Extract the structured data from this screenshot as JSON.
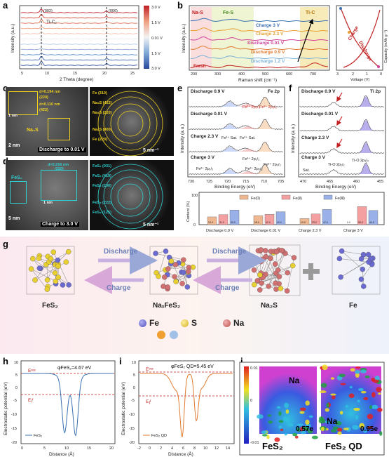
{
  "panels": {
    "a": {
      "letter": "a",
      "phase": "Ti₃C₂",
      "peak1": "(002)",
      "peak2": "(006)",
      "xlabel": "2 Theta (degree)",
      "ylabel": "Intensity (a.u.)",
      "xticks": [
        "5",
        "10",
        "15",
        "20",
        "25"
      ],
      "colorbar_ticks": [
        "3.0 V",
        "1.5 V",
        "0.01 V",
        "1.5 V",
        "3.0 V"
      ]
    },
    "b": {
      "letter": "b",
      "regions": [
        "Na-S",
        "Fe-S",
        "Ti-C"
      ],
      "curves": [
        "Charge 3 V",
        "Charge 2.3 V",
        "Discharge 0.01 V",
        "Discharge 0.9 V",
        "Discharge 1.2 V",
        "Fresh"
      ],
      "curve_colors": [
        "#3a6fb0",
        "#e6a030",
        "#d0409a",
        "#e07a30",
        "#7ab0d8",
        "#c02020"
      ],
      "xlabel": "Raman shift (cm⁻¹)",
      "ylabel": "Intensity (a.u.)",
      "xticks": [
        "200",
        "300",
        "400",
        "500",
        "600",
        "700"
      ],
      "side_xlabel": "Voltage (V)",
      "side_ylabel": "Capacity (mAh g⁻¹)",
      "side_charge": "Charge",
      "side_discharge": "Discharge",
      "side_xticks": [
        "3",
        "2",
        "1",
        "0"
      ]
    },
    "c": {
      "letter": "c",
      "caption": "Discharge to 0.01 V",
      "phase": "Na₂S",
      "scale": "2 nm",
      "inset_scale": "1 nm",
      "lattice1": "d=0.194 nm",
      "lattice2": "(220)",
      "lattice3": "d=0.110 nm",
      "lattice4": "(422)",
      "saed_scale": "5 nm⁻¹",
      "rings": [
        "Fe (310)",
        "Na₂S (422)",
        "Na₂S (220)",
        "Na₂S (400)",
        "Fe (220)"
      ]
    },
    "d": {
      "letter": "d",
      "caption": "Charge to 3.0 V",
      "phase": "FeS₂",
      "scale": "5 nm",
      "inset_scale": "1 nm",
      "lattice1": "d=0.216 nm",
      "lattice2": "(220)",
      "saed_scale": "5 nm⁻¹",
      "rings": [
        "FeS₂ (031)",
        "FeS₂ (419)",
        "FeS₂ (200)",
        "FeS₂ (222)",
        "FeS₂ (125)"
      ]
    },
    "e": {
      "letter": "e",
      "title": "Fe 2p",
      "states": [
        "Discharge 0.9 V",
        "Discharge 0.01 V",
        "Charge 2.3 V",
        "Charge 3 V"
      ],
      "xlabel": "Binding Energy (eV)",
      "ylabel": "Intensity (a.u.)",
      "xticks": [
        "730",
        "725",
        "720",
        "715",
        "710",
        "705"
      ],
      "peaks": [
        "Fe²⁺ 2p₃/₂",
        "Fe³⁺ 2p₃/₂",
        "Fe²⁺ Sat.",
        "Fe³⁺ Sat.",
        "Fe³⁺ 2p₁/₂",
        "Fe²⁺ 2p₁/₂",
        "Fe²⁺ 2p₃/₂",
        "Fe³⁺ 2p₃/₂"
      ]
    },
    "f": {
      "letter": "f",
      "title": "Ti 2p",
      "states": [
        "Discharge 0.9 V",
        "Discharge 0.01 V",
        "Charge 2.3 V",
        "Charge 3 V"
      ],
      "xlabel": "Binding Energy (eV)",
      "ylabel": "Intensity (a.u.)",
      "xticks": [
        "470",
        "465",
        "460",
        "455"
      ],
      "peaks": [
        "Ti-O 2p₁/₂",
        "Ti-O 2p₃/₂",
        "Sat."
      ]
    },
    "g": {
      "letter": "g",
      "discharge1": "Discharge",
      "charge1": "Charge",
      "discharge2": "Discharge",
      "charge2": "Charge",
      "species": [
        "FeS₂",
        "NaₓFeS₂",
        "Na₂S",
        "Fe"
      ],
      "legend": [
        {
          "name": "Fe",
          "color": "#6a6ad0"
        },
        {
          "name": "S",
          "color": "#e8d030"
        },
        {
          "name": "Na",
          "color": "#d07070"
        }
      ]
    },
    "h": {
      "letter": "h",
      "phi": "φFeS₂=4.67 eV",
      "evac": "Eᵛᵃᶜ",
      "ef": "Eƒ",
      "xlabel": "Distance (Å)",
      "ylabel": "Electrostatic potential (eV)",
      "legend": "FeS₂",
      "xticks": [
        "0",
        "5",
        "10",
        "15",
        "20"
      ],
      "yticks": [
        "10",
        "5",
        "0",
        "-5",
        "-10",
        "-15",
        "-20"
      ]
    },
    "i": {
      "letter": "i",
      "phi": "φFeS₂ QD=5.45 eV",
      "evac": "Eᵛᵃᶜ",
      "ef": "Eƒ",
      "xlabel": "Distance (Å)",
      "ylabel": "Electrostatic potential (eV)",
      "legend": "FeS₂ QD",
      "xticks": [
        "-2",
        "0",
        "2",
        "4",
        "6",
        "8",
        "10",
        "12",
        "14"
      ],
      "yticks": [
        "10",
        "5",
        "0",
        "-5",
        "-10",
        "-15",
        "-20"
      ]
    },
    "j": {
      "letter": "j",
      "label1": "FeS₂",
      "label2": "FeS₂ QD",
      "charge1": "0.57e",
      "charge2": "0.95e",
      "na": "Na",
      "scale_top": "0.01",
      "scale_mid": "0",
      "scale_bot": "-0.01"
    }
  },
  "content_chart": {
    "ylabel": "Content (%)",
    "legend": [
      "Fe(0)",
      "Fe(Ⅱ)",
      "Fe(Ⅲ)"
    ],
    "colors": [
      "#f0b890",
      "#f4a0a0",
      "#9ab0e8"
    ],
    "categories": [
      "Discharge 0.9 V",
      "Discharge 0.01 V",
      "Charge 2.3 V",
      "Charge 3 V"
    ],
    "yticks": [
      "0",
      "20",
      "40",
      "60",
      "80",
      "100"
    ]
  },
  "chart_data": {
    "type": "bar",
    "categories": [
      "Discharge 0.9 V",
      "Discharge 0.01 V",
      "Charge 2.3 V",
      "Charge 3 V"
    ],
    "series": [
      {
        "name": "Fe(0)",
        "values": [
          24,
          28,
          19,
          0
        ]
      },
      {
        "name": "Fe(Ⅱ)",
        "values": [
          31,
          32,
          33,
          56
        ]
      },
      {
        "name": "Fe(Ⅲ)",
        "values": [
          45,
          40,
          47,
          44
        ]
      }
    ],
    "ylabel": "Content (%)",
    "ylim": [
      0,
      100
    ]
  }
}
